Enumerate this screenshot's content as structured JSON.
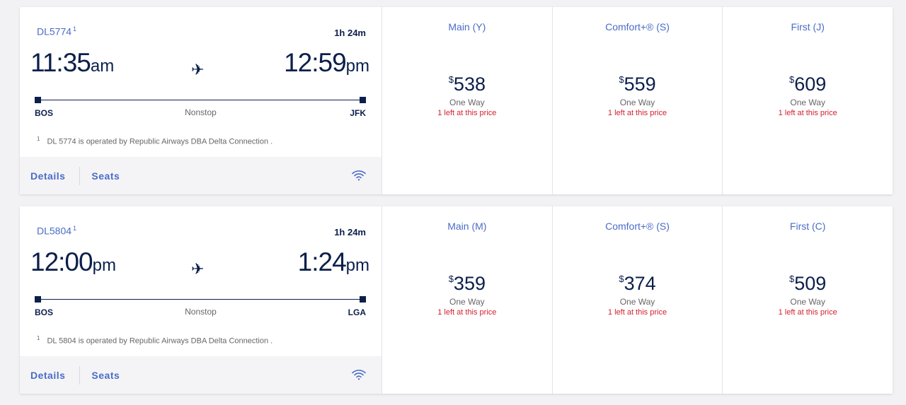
{
  "flights": [
    {
      "flight_number": "DL5774",
      "footnote_mark": "1",
      "duration": "1h 24m",
      "depart_time": "11:35",
      "depart_ampm": "am",
      "arrive_time": "12:59",
      "arrive_ampm": "pm",
      "origin": "BOS",
      "destination": "JFK",
      "stops": "Nonstop",
      "operated_note": "DL 5774 is operated by Republic Airways DBA Delta Connection .",
      "details_label": "Details",
      "seats_label": "Seats",
      "fares": [
        {
          "title": "Main (Y)",
          "currency": "$",
          "price": "538",
          "trip": "One Way",
          "availability": "1 left at this price"
        },
        {
          "title": "Comfort+® (S)",
          "currency": "$",
          "price": "559",
          "trip": "One Way",
          "availability": "1 left at this price"
        },
        {
          "title": "First (J)",
          "currency": "$",
          "price": "609",
          "trip": "One Way",
          "availability": "1 left at this price"
        }
      ]
    },
    {
      "flight_number": "DL5804",
      "footnote_mark": "1",
      "duration": "1h 24m",
      "depart_time": "12:00",
      "depart_ampm": "pm",
      "arrive_time": "1:24",
      "arrive_ampm": "pm",
      "origin": "BOS",
      "destination": "LGA",
      "stops": "Nonstop",
      "operated_note": "DL 5804 is operated by Republic Airways DBA Delta Connection .",
      "details_label": "Details",
      "seats_label": "Seats",
      "fares": [
        {
          "title": "Main (M)",
          "currency": "$",
          "price": "359",
          "trip": "One Way",
          "availability": "1 left at this price"
        },
        {
          "title": "Comfort+® (S)",
          "currency": "$",
          "price": "374",
          "trip": "One Way",
          "availability": "1 left at this price"
        },
        {
          "title": "First (C)",
          "currency": "$",
          "price": "509",
          "trip": "One Way",
          "availability": "1 left at this price"
        }
      ]
    }
  ],
  "colors": {
    "brand_blue": "#4a6cc6",
    "navy": "#0b1f4b",
    "alert_red": "#d2202f"
  }
}
